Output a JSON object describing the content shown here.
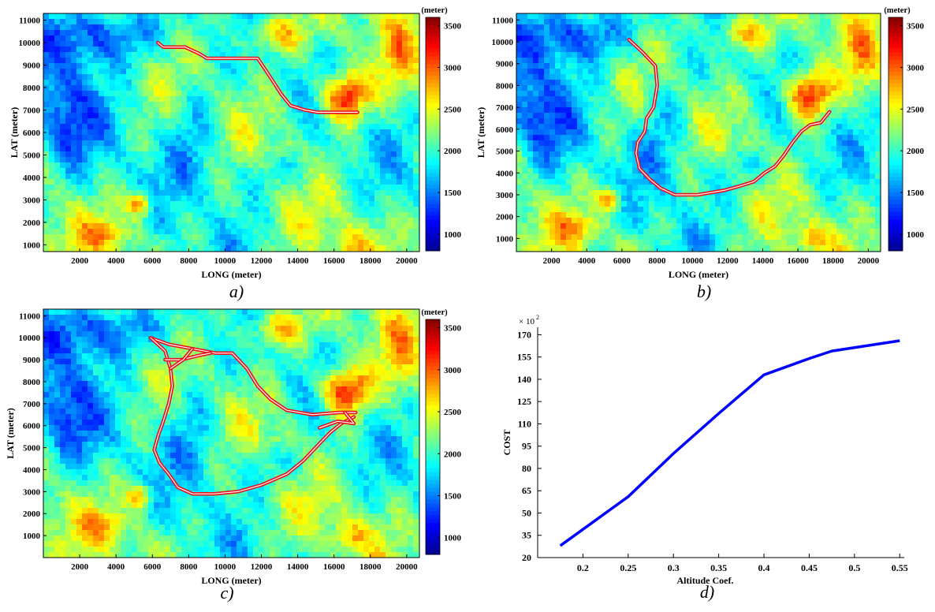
{
  "colors": {
    "colormap": [
      "#00008f",
      "#0000ff",
      "#0080ff",
      "#00ffff",
      "#80ff80",
      "#ffff00",
      "#ff8000",
      "#ff0000",
      "#800000"
    ],
    "path_outer": "#e8121b",
    "path_inner": "#ffffff",
    "line": "#0000ff"
  },
  "chart_data": [
    {
      "type": "heatmap",
      "caption": "a)",
      "xlabel": "LONG (meter)",
      "ylabel": "LAT (meter)",
      "xlim": [
        0,
        20700
      ],
      "ylim": [
        700,
        11300
      ],
      "xticks": [
        2000,
        4000,
        6000,
        8000,
        10000,
        12000,
        14000,
        16000,
        18000,
        20000
      ],
      "yticks": [
        1000,
        2000,
        3000,
        4000,
        5000,
        6000,
        7000,
        8000,
        9000,
        10000,
        11000
      ],
      "colorbar": {
        "label": "(meter)",
        "range": [
          800,
          3600
        ],
        "ticks": [
          1000,
          1500,
          2000,
          2500,
          3000,
          3500
        ]
      },
      "paths": [
        [
          [
            6300,
            10000
          ],
          [
            6600,
            9800
          ],
          [
            7800,
            9800
          ],
          [
            8600,
            9500
          ],
          [
            9000,
            9300
          ],
          [
            10700,
            9300
          ],
          [
            11800,
            9300
          ],
          [
            12300,
            8700
          ],
          [
            12700,
            8200
          ],
          [
            13100,
            7700
          ],
          [
            13600,
            7200
          ],
          [
            14400,
            7000
          ],
          [
            15100,
            6900
          ],
          [
            16500,
            6900
          ],
          [
            17300,
            6900
          ]
        ]
      ]
    },
    {
      "type": "heatmap",
      "caption": "b)",
      "xlabel": "LONG (meter)",
      "ylabel": "LAT (meter)",
      "xlim": [
        0,
        20700
      ],
      "ylim": [
        400,
        11300
      ],
      "xticks": [
        2000,
        4000,
        6000,
        8000,
        10000,
        12000,
        14000,
        16000,
        18000,
        20000
      ],
      "yticks": [
        1000,
        2000,
        3000,
        4000,
        5000,
        6000,
        7000,
        8000,
        9000,
        10000,
        11000
      ],
      "colorbar": {
        "label": "(meter)",
        "range": [
          800,
          3600
        ],
        "ticks": [
          1000,
          1500,
          2000,
          2500,
          3000,
          3500
        ]
      },
      "paths": [
        [
          [
            6400,
            10100
          ],
          [
            7200,
            9500
          ],
          [
            7900,
            8900
          ],
          [
            8000,
            8000
          ],
          [
            7800,
            7000
          ],
          [
            7400,
            6500
          ],
          [
            7300,
            5900
          ],
          [
            6900,
            5400
          ],
          [
            6800,
            4900
          ],
          [
            7000,
            4200
          ],
          [
            7600,
            3700
          ],
          [
            8200,
            3300
          ],
          [
            9000,
            3000
          ],
          [
            10300,
            3000
          ],
          [
            11800,
            3200
          ],
          [
            12700,
            3400
          ],
          [
            13500,
            3600
          ],
          [
            14100,
            4000
          ],
          [
            14700,
            4300
          ],
          [
            15200,
            4800
          ],
          [
            15700,
            5400
          ],
          [
            16200,
            5900
          ],
          [
            16700,
            6200
          ],
          [
            17300,
            6300
          ],
          [
            17800,
            6800
          ]
        ]
      ]
    },
    {
      "type": "heatmap",
      "caption": "c)",
      "xlabel": "LONG (meter)",
      "ylabel": "LAT (meter)",
      "xlim": [
        0,
        20700
      ],
      "ylim": [
        0,
        11300
      ],
      "xticks": [
        2000,
        4000,
        6000,
        8000,
        10000,
        12000,
        14000,
        16000,
        18000,
        20000
      ],
      "yticks": [
        1000,
        2000,
        3000,
        4000,
        5000,
        6000,
        7000,
        8000,
        9000,
        10000,
        11000
      ],
      "colorbar": {
        "label": "(meter)",
        "range": [
          800,
          3600
        ],
        "ticks": [
          1000,
          1500,
          2000,
          2500,
          3000,
          3500
        ]
      },
      "paths": [
        [
          [
            5900,
            10000
          ],
          [
            6900,
            9700
          ],
          [
            8200,
            9500
          ],
          [
            9500,
            9300
          ],
          [
            10400,
            9300
          ],
          [
            11200,
            8600
          ],
          [
            11800,
            7800
          ],
          [
            12500,
            7200
          ],
          [
            13400,
            6700
          ],
          [
            14800,
            6500
          ],
          [
            16300,
            6600
          ],
          [
            17200,
            6600
          ]
        ],
        [
          [
            5900,
            10000
          ],
          [
            6700,
            9400
          ],
          [
            7000,
            8600
          ],
          [
            7100,
            7800
          ],
          [
            6900,
            7000
          ],
          [
            6600,
            6200
          ],
          [
            6300,
            5500
          ],
          [
            6100,
            4900
          ],
          [
            6400,
            4300
          ],
          [
            6900,
            3800
          ],
          [
            7400,
            3200
          ],
          [
            8200,
            2900
          ],
          [
            9400,
            2900
          ],
          [
            10700,
            3000
          ],
          [
            12000,
            3300
          ],
          [
            13400,
            3800
          ],
          [
            14300,
            4400
          ],
          [
            15100,
            5100
          ],
          [
            15800,
            5700
          ],
          [
            16400,
            6100
          ],
          [
            17100,
            6400
          ]
        ],
        [
          [
            6700,
            9000
          ],
          [
            7600,
            9000
          ],
          [
            8600,
            9200
          ],
          [
            9200,
            9300
          ]
        ],
        [
          [
            7000,
            8600
          ],
          [
            7700,
            9000
          ],
          [
            8200,
            9500
          ]
        ],
        [
          [
            15200,
            5900
          ],
          [
            16200,
            6200
          ],
          [
            17100,
            6100
          ],
          [
            16600,
            6600
          ]
        ]
      ]
    },
    {
      "type": "line",
      "caption": "d)",
      "xlabel": "Altitude Coef.",
      "ylabel": "COST",
      "y_multiplier": "× 10",
      "y_multiplier_exp": "2",
      "xlim": [
        0.15,
        0.555
      ],
      "ylim": [
        20,
        175
      ],
      "xticks": [
        0.2,
        0.25,
        0.3,
        0.35,
        0.4,
        0.45,
        0.5,
        0.55
      ],
      "yticks": [
        20,
        35,
        50,
        65,
        80,
        95,
        110,
        125,
        140,
        155,
        170
      ],
      "series": [
        {
          "x": [
            0.175,
            0.25,
            0.3,
            0.35,
            0.4,
            0.45,
            0.475,
            0.55
          ],
          "y": [
            28,
            61,
            90,
            117,
            143,
            154,
            159,
            166
          ]
        }
      ]
    }
  ]
}
